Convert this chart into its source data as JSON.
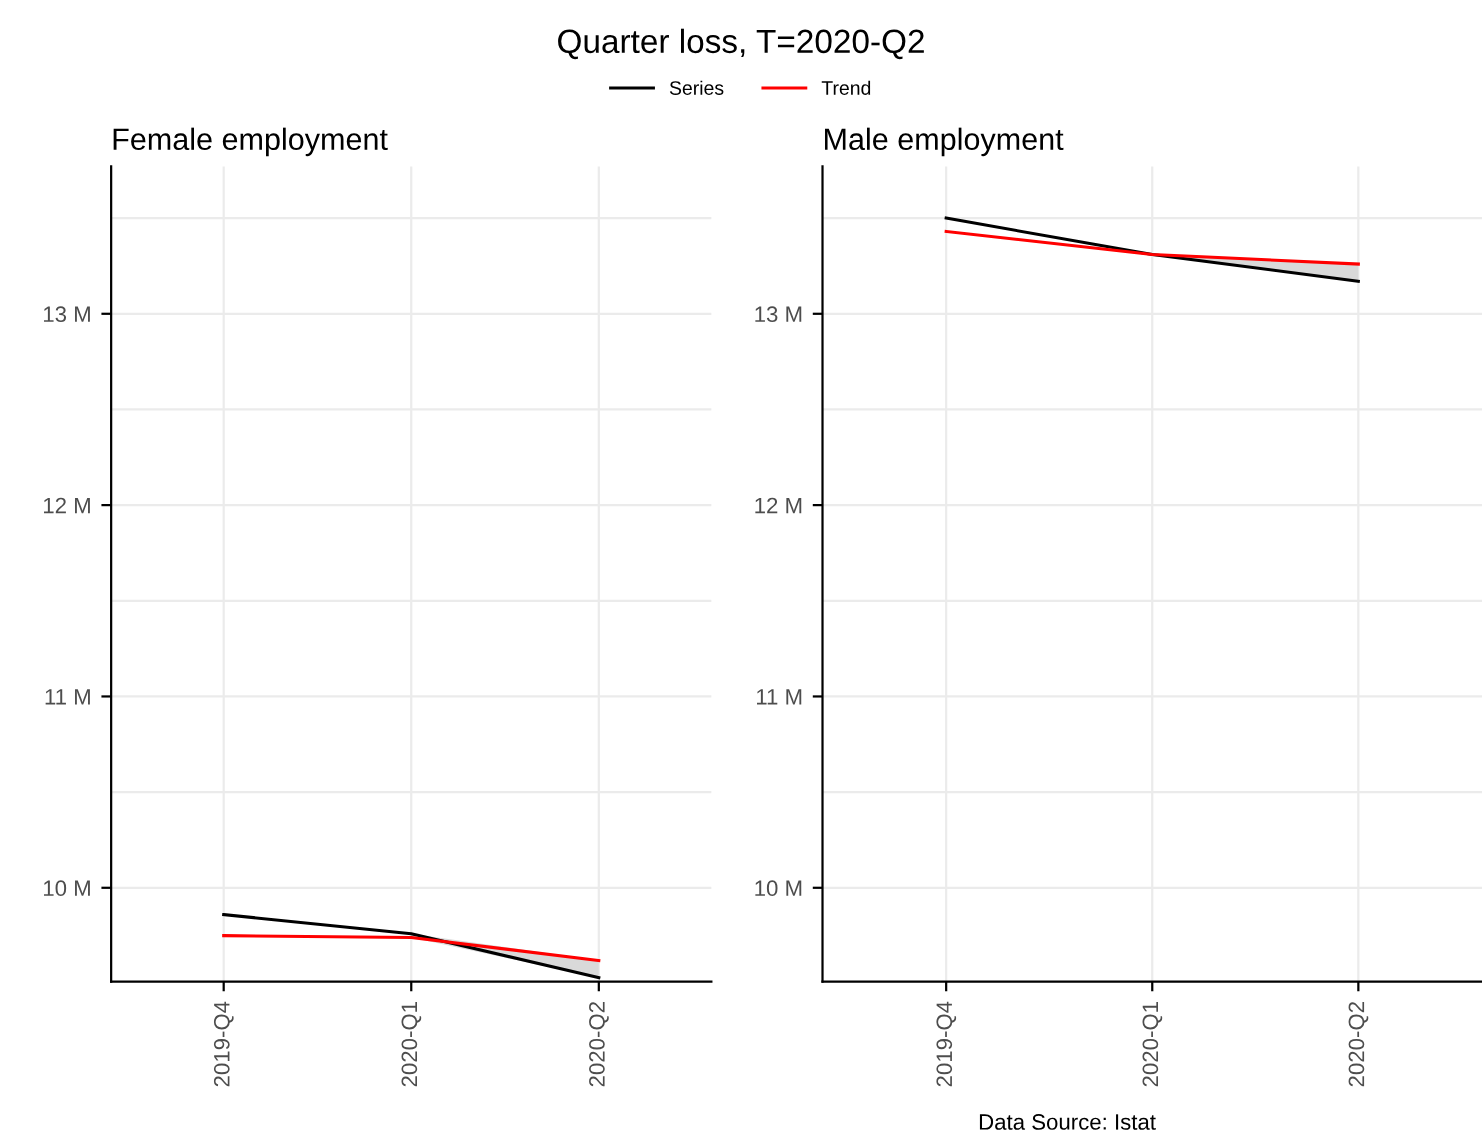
{
  "chart_data": [
    {
      "type": "line",
      "title": "Female employment",
      "categories": [
        "2019-Q4",
        "2020-Q1",
        "2020-Q2"
      ],
      "series": [
        {
          "name": "Series",
          "color": "#000000",
          "values": [
            9.86,
            9.76,
            9.53
          ],
          "lower": [
            null,
            9.74,
            9.53
          ],
          "upper": [
            null,
            9.76,
            9.62
          ]
        },
        {
          "name": "Trend",
          "color": "#ff0000",
          "values": [
            9.75,
            9.74,
            9.62
          ]
        }
      ],
      "ylim": [
        9.51,
        13.77
      ],
      "yticks": [
        {
          "value": 10,
          "label": "10 M"
        },
        {
          "value": 10.5,
          "label": null
        },
        {
          "value": 11,
          "label": "11 M"
        },
        {
          "value": 11.5,
          "label": null
        },
        {
          "value": 12,
          "label": "12 M"
        },
        {
          "value": 12.5,
          "label": null
        },
        {
          "value": 13,
          "label": "13 M"
        },
        {
          "value": 13.5,
          "label": null
        }
      ],
      "grid": true,
      "legend": "top",
      "annotations": [
        "Quarter loss, T=2020-Q2"
      ]
    },
    {
      "type": "line",
      "title": "Male employment",
      "categories": [
        "2019-Q4",
        "2020-Q1",
        "2020-Q2"
      ],
      "series": [
        {
          "color": "#000000",
          "values": [
            13.5,
            13.31,
            13.17
          ],
          "lower": [
            null,
            13.31,
            13.17
          ],
          "upper": [
            null,
            13.31,
            13.26
          ]
        },
        {
          "color": "#ff0000",
          "values": [
            13.43,
            13.31,
            13.26
          ]
        }
      ],
      "ylim": [
        9.51,
        13.77
      ],
      "yticks": [
        {
          "value": 10,
          "label": "10 M"
        },
        {
          "value": 10.5,
          "label": null
        },
        {
          "value": 11,
          "label": "11 M"
        },
        {
          "value": 11.5,
          "label": null
        },
        {
          "value": 12,
          "label": "12 M"
        },
        {
          "value": 12.5,
          "label": null
        },
        {
          "value": 13,
          "label": "13 M"
        },
        {
          "value": 13.5,
          "label": null
        }
      ],
      "grid": true,
      "annotations": [
        "Data Source: Istat"
      ]
    }
  ]
}
